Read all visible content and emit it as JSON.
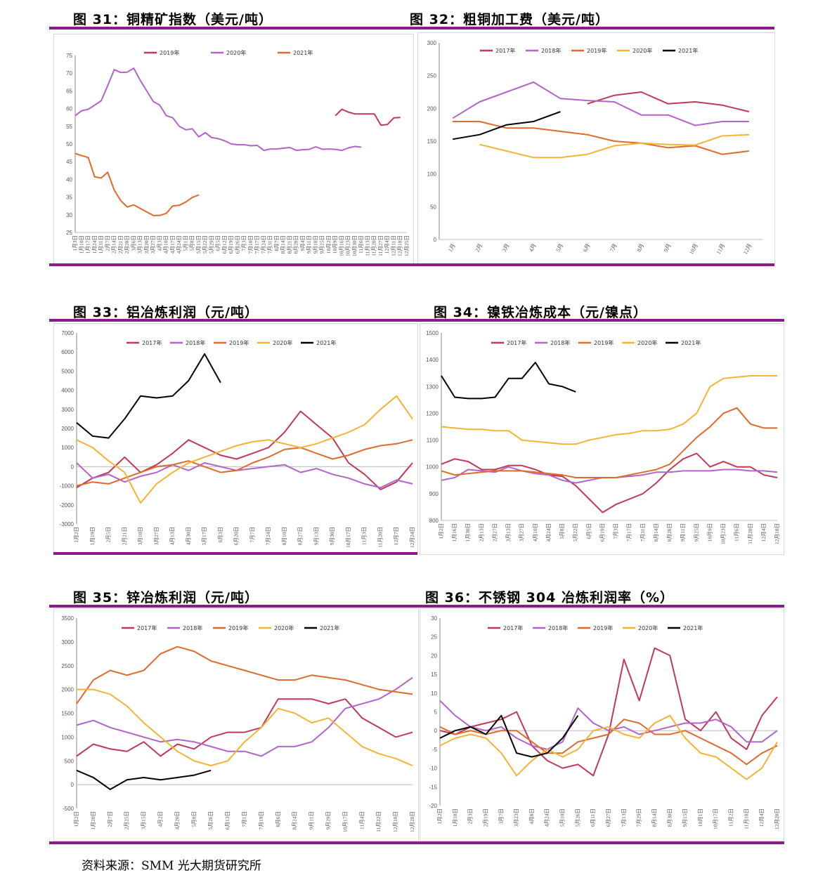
{
  "titles": {
    "f31": "图 31：铜精矿指数（美元/吨）",
    "f32": "图 32：粗铜加工费（美元/吨）",
    "f33": "图 33：铝冶炼利润（元/吨）",
    "f34": "图 34：镍铁冶炼成本（元/镍点）",
    "f35": "图 35：锌冶炼利润（元/吨）",
    "f36": "图 36：不锈钢 304 冶炼利润率（%）"
  },
  "source": "资料来源：SMM  光大期货研究所",
  "colors": {
    "c2017": "#c0395a",
    "c2018": "#b264c8",
    "c2019": "#e06a2c",
    "c2020": "#f5b335",
    "c2021": "#000000",
    "rule": "#8b1a8b"
  },
  "chart_data": [
    {
      "id": "f31",
      "type": "line",
      "categories": [
        "1月3日",
        "1月10日",
        "1月17日",
        "1月24日",
        "1月31日",
        "2月7日",
        "2月14日",
        "2月21日",
        "2月28日",
        "3月6日",
        "3月13日",
        "3月20日",
        "3月27日",
        "4月3日",
        "4月10日",
        "4月17日",
        "4月24日",
        "5月1日",
        "5月8日",
        "5月15日",
        "5月22日",
        "5月29日",
        "6月5日",
        "6月12日",
        "6月19日",
        "6月26日",
        "7月3日",
        "7月10日",
        "7月17日",
        "7月24日",
        "7月31日",
        "8月7日",
        "8月14日",
        "8月21日",
        "8月28日",
        "9月4日",
        "9月11日",
        "9月18日",
        "9月25日",
        "10月2日",
        "10月9日",
        "10月16日",
        "10月23日",
        "10月30日",
        "11月6日",
        "11月13日",
        "11月20日",
        "11月27日",
        "12月4日",
        "12月11日",
        "12月18日",
        "12月25日"
      ],
      "ylim": [
        25,
        75
      ],
      "yticks": [
        25,
        30,
        35,
        40,
        45,
        50,
        55,
        60,
        65,
        70,
        75
      ],
      "series": [
        {
          "name": "2019年",
          "color_key": "c2019s31",
          "values": [
            null,
            null,
            null,
            null,
            null,
            null,
            null,
            null,
            null,
            null,
            null,
            null,
            null,
            null,
            null,
            null,
            null,
            null,
            null,
            null,
            null,
            null,
            null,
            null,
            null,
            null,
            null,
            null,
            null,
            null,
            null,
            null,
            null,
            null,
            null,
            null,
            null,
            null,
            null,
            null,
            58,
            59.8,
            59,
            58.5,
            58.5,
            58.5,
            58.5,
            55.3,
            55.5,
            57.4,
            57.5,
            null
          ]
        },
        {
          "name": "2020年",
          "color_key": "c2018",
          "values": [
            58,
            59.4,
            59.8,
            61,
            62.2,
            66.5,
            71,
            70.2,
            70.3,
            71.4,
            68,
            65,
            62,
            61,
            58,
            57.4,
            55,
            54,
            54.3,
            52,
            53.2,
            51.8,
            51.5,
            50.9,
            50,
            49.8,
            49.8,
            49.5,
            49.6,
            48.2,
            48.6,
            48.6,
            48.8,
            49,
            48.2,
            48.4,
            48.5,
            49.2,
            48.5,
            48.6,
            48.5,
            48.2,
            48.9,
            49.3,
            49.1,
            null,
            null,
            null,
            null,
            null,
            null,
            null
          ]
        },
        {
          "name": "2021年",
          "color_key": "c2019",
          "values": [
            47.3,
            46.7,
            46.2,
            40.7,
            40.4,
            42,
            37,
            34,
            32.2,
            32.8,
            31.8,
            30.8,
            29.8,
            29.8,
            30.4,
            32.5,
            32.7,
            33.6,
            34.9,
            35.6,
            null,
            null,
            null,
            null,
            null,
            null,
            null,
            null,
            null,
            null,
            null,
            null,
            null,
            null,
            null,
            null,
            null,
            null,
            null,
            null,
            null,
            null,
            null,
            null,
            null,
            null,
            null,
            null,
            null,
            null,
            null,
            null
          ]
        }
      ]
    },
    {
      "id": "f32",
      "type": "line",
      "categories": [
        "1月",
        "2月",
        "3月",
        "4月",
        "5月",
        "6月",
        "7月",
        "8月",
        "9月",
        "10月",
        "11月",
        "12月"
      ],
      "ylim": [
        0,
        300
      ],
      "yticks": [
        0,
        50,
        100,
        150,
        200,
        250,
        300
      ],
      "series": [
        {
          "name": "2017年",
          "color_key": "c2017",
          "values": [
            null,
            null,
            null,
            null,
            null,
            207,
            220,
            225,
            207,
            210,
            205,
            195
          ]
        },
        {
          "name": "2018年",
          "color_key": "c2018",
          "values": [
            185,
            210,
            225,
            240,
            215,
            212,
            210,
            190,
            190,
            174,
            180,
            180
          ]
        },
        {
          "name": "2019年",
          "color_key": "c2019",
          "values": [
            180,
            180,
            170,
            170,
            165,
            160,
            150,
            147,
            140,
            143,
            130,
            135
          ]
        },
        {
          "name": "2020年",
          "color_key": "c2020",
          "values": [
            null,
            145,
            135,
            125,
            125,
            130,
            143,
            147,
            145,
            144,
            158,
            160
          ]
        },
        {
          "name": "2021年",
          "color_key": "c2021",
          "values": [
            153,
            160,
            175,
            180,
            195,
            null,
            null,
            null,
            null,
            null,
            null,
            null
          ]
        }
      ]
    },
    {
      "id": "f33",
      "type": "line",
      "categories": [
        "1月2日",
        "1月19日",
        "2月5日",
        "2月21日",
        "3月10日",
        "3月27日",
        "4月13日",
        "4月30日",
        "5月17日",
        "6月3日",
        "6月20日",
        "7月7日",
        "7月24日",
        "8月10日",
        "8月27日",
        "9月13日",
        "9月30日",
        "10月17日",
        "11月3日",
        "11月20日",
        "12月7日",
        "12月24日"
      ],
      "ylim": [
        -3000,
        7000
      ],
      "yticks": [
        -3000,
        -2000,
        -1000,
        0,
        1000,
        2000,
        3000,
        4000,
        5000,
        6000,
        7000
      ],
      "series": [
        {
          "name": "2017年",
          "color_key": "c2017",
          "values": [
            -1100,
            -600,
            -300,
            500,
            -300,
            100,
            700,
            1400,
            1000,
            600,
            400,
            700,
            1000,
            1800,
            2900,
            2200,
            1500,
            200,
            -400,
            -1200,
            -800,
            200
          ]
        },
        {
          "name": "2018年",
          "color_key": "c2018",
          "values": [
            200,
            -600,
            -400,
            -800,
            -500,
            -300,
            100,
            -200,
            200,
            0,
            -200,
            -100,
            0,
            100,
            -300,
            -100,
            -400,
            -600,
            -900,
            -1100,
            -700,
            -900
          ]
        },
        {
          "name": "2019年",
          "color_key": "c2019",
          "values": [
            -1000,
            -800,
            -900,
            -600,
            -300,
            0,
            100,
            300,
            0,
            -300,
            -200,
            200,
            500,
            900,
            1000,
            700,
            400,
            600,
            900,
            1100,
            1200,
            1400
          ]
        },
        {
          "name": "2020年",
          "color_key": "c2020",
          "values": [
            1400,
            1000,
            300,
            -300,
            -1900,
            -900,
            -300,
            200,
            500,
            800,
            1100,
            1300,
            1400,
            1200,
            1000,
            1200,
            1500,
            1800,
            2200,
            3000,
            3700,
            2500
          ]
        },
        {
          "name": "2021年",
          "color_key": "c2021",
          "values": [
            2300,
            1600,
            1500,
            2500,
            3700,
            3600,
            3700,
            4500,
            5900,
            4400,
            null,
            null,
            null,
            null,
            null,
            null,
            null,
            null,
            null,
            null,
            null,
            null
          ]
        }
      ]
    },
    {
      "id": "f34",
      "type": "line",
      "categories": [
        "1月2日",
        "1月16日",
        "1月30日",
        "2月13日",
        "2月27日",
        "3月13日",
        "3月27日",
        "4月10日",
        "4月24日",
        "5月8日",
        "5月22日",
        "6月5日",
        "6月19日",
        "7月3日",
        "7月17日",
        "7月31日",
        "8月14日",
        "8月28日",
        "9月11日",
        "9月25日",
        "10月9日",
        "10月23日",
        "11月6日",
        "11月20日",
        "12月4日",
        "12月18日"
      ],
      "ylim": [
        800,
        1500
      ],
      "yticks": [
        800,
        900,
        1000,
        1100,
        1200,
        1300,
        1400,
        1500
      ],
      "series": [
        {
          "name": "2017年",
          "color_key": "c2017",
          "values": [
            1010,
            1030,
            1020,
            990,
            990,
            1005,
            1005,
            990,
            970,
            965,
            930,
            880,
            830,
            860,
            880,
            900,
            940,
            990,
            1030,
            1050,
            1000,
            1020,
            1000,
            1000,
            970,
            960
          ]
        },
        {
          "name": "2018年",
          "color_key": "c2018",
          "values": [
            950,
            960,
            990,
            985,
            980,
            1000,
            985,
            975,
            970,
            950,
            940,
            950,
            960,
            960,
            965,
            970,
            980,
            980,
            985,
            985,
            985,
            990,
            990,
            985,
            985,
            980
          ]
        },
        {
          "name": "2019年",
          "color_key": "c2019",
          "values": [
            985,
            970,
            975,
            980,
            985,
            985,
            985,
            980,
            975,
            970,
            960,
            960,
            960,
            960,
            970,
            980,
            990,
            1010,
            1060,
            1110,
            1150,
            1200,
            1220,
            1160,
            1145,
            1145
          ]
        },
        {
          "name": "2020年",
          "color_key": "c2020",
          "values": [
            1150,
            1145,
            1140,
            1140,
            1135,
            1135,
            1100,
            1095,
            1090,
            1085,
            1085,
            1100,
            1110,
            1120,
            1125,
            1135,
            1135,
            1140,
            1160,
            1200,
            1300,
            1330,
            1335,
            1340,
            1340,
            1340
          ]
        },
        {
          "name": "2021年",
          "color_key": "c2021",
          "values": [
            1340,
            1260,
            1255,
            1255,
            1260,
            1330,
            1330,
            1390,
            1310,
            1300,
            1280,
            null,
            null,
            null,
            null,
            null,
            null,
            null,
            null,
            null,
            null,
            null,
            null,
            null,
            null,
            null
          ]
        }
      ]
    },
    {
      "id": "f35",
      "type": "line",
      "categories": [
        "1月2日",
        "1月20日",
        "2月7日",
        "2月25日",
        "3月15日",
        "4月2日",
        "4月20日",
        "5月8日",
        "5月26日",
        "6月13日",
        "7月1日",
        "7月19日",
        "8月6日",
        "8月24日",
        "9月11日",
        "9月29日",
        "10月17日",
        "11月4日",
        "11月22日",
        "12月10日",
        "12月28日"
      ],
      "ylim": [
        -500,
        3500
      ],
      "yticks": [
        -500,
        0,
        500,
        1000,
        1500,
        2000,
        2500,
        3000,
        3500
      ],
      "series": [
        {
          "name": "2017年",
          "color_key": "c2017",
          "values": [
            600,
            850,
            750,
            700,
            900,
            600,
            850,
            750,
            1000,
            1100,
            1100,
            1200,
            1800,
            1800,
            1800,
            1700,
            1800,
            1400,
            1200,
            1000,
            1100
          ]
        },
        {
          "name": "2018年",
          "color_key": "c2018",
          "values": [
            1250,
            1350,
            1200,
            1100,
            1000,
            900,
            950,
            900,
            800,
            700,
            700,
            600,
            800,
            800,
            900,
            1200,
            1600,
            1700,
            1800,
            2000,
            2250
          ]
        },
        {
          "name": "2019年",
          "color_key": "c2019",
          "values": [
            1700,
            2200,
            2400,
            2300,
            2400,
            2750,
            2900,
            2800,
            2600,
            2500,
            2400,
            2300,
            2200,
            2200,
            2300,
            2250,
            2200,
            2100,
            2000,
            1950,
            1900
          ]
        },
        {
          "name": "2020年",
          "color_key": "c2020",
          "values": [
            2000,
            2000,
            1900,
            1650,
            1300,
            1000,
            700,
            500,
            400,
            500,
            900,
            1200,
            1600,
            1500,
            1300,
            1400,
            1100,
            800,
            650,
            550,
            400
          ]
        },
        {
          "name": "2021年",
          "color_key": "c2021",
          "values": [
            300,
            150,
            -100,
            100,
            150,
            100,
            150,
            200,
            300,
            null,
            null,
            null,
            null,
            null,
            null,
            null,
            null,
            null,
            null,
            null,
            null
          ]
        }
      ]
    },
    {
      "id": "f36",
      "type": "line",
      "categories": [
        "1月2日",
        "1月18日",
        "2月3日",
        "2月19日",
        "3月7日",
        "3月23日",
        "4月8日",
        "4月24日",
        "5月10日",
        "5月26日",
        "6月11日",
        "6月27日",
        "7月13日",
        "7月29日",
        "8月14日",
        "8月30日",
        "9月15日",
        "10月1日",
        "10月17日",
        "11月2日",
        "11月18日",
        "12月4日",
        "12月20日"
      ],
      "ylim": [
        -20,
        30
      ],
      "yticks": [
        -20,
        -15,
        -10,
        -5,
        0,
        5,
        10,
        15,
        20,
        25,
        30
      ],
      "series": [
        {
          "name": "2017年",
          "color_key": "c2017",
          "values": [
            0,
            -1,
            1,
            2,
            3,
            5,
            -4,
            -8,
            -10,
            -9,
            -12,
            -1,
            19,
            8,
            22,
            20,
            3,
            0,
            5,
            -2,
            -5,
            4,
            9
          ]
        },
        {
          "name": "2018年",
          "color_key": "c2018",
          "values": [
            8,
            4,
            1,
            0,
            1,
            -2,
            -4,
            -5,
            -3,
            6,
            2,
            0,
            1,
            -1,
            0,
            1,
            2,
            2,
            3,
            1,
            -3,
            -3,
            0
          ]
        },
        {
          "name": "2019年",
          "color_key": "c2019",
          "values": [
            1,
            -1,
            0,
            -1,
            0,
            0,
            -3,
            -6,
            -6,
            -3,
            -2,
            -1,
            3,
            2,
            -1,
            -1,
            0,
            -2,
            -4,
            -6,
            -9,
            -6,
            -4
          ]
        },
        {
          "name": "2020年",
          "color_key": "c2020",
          "values": [
            -4,
            -2,
            -1,
            -2,
            -6,
            -12,
            -8,
            -5,
            -7,
            -5,
            0,
            1,
            -1,
            -2,
            2,
            4,
            -2,
            -6,
            -7,
            -10,
            -13,
            -10,
            -3
          ]
        },
        {
          "name": "2021年",
          "color_key": "c2021",
          "values": [
            -2,
            0,
            1,
            -1,
            4,
            -6,
            -7,
            -6,
            -2,
            4,
            null,
            null,
            null,
            null,
            null,
            null,
            null,
            null,
            null,
            null,
            null,
            null,
            null
          ]
        }
      ]
    }
  ]
}
